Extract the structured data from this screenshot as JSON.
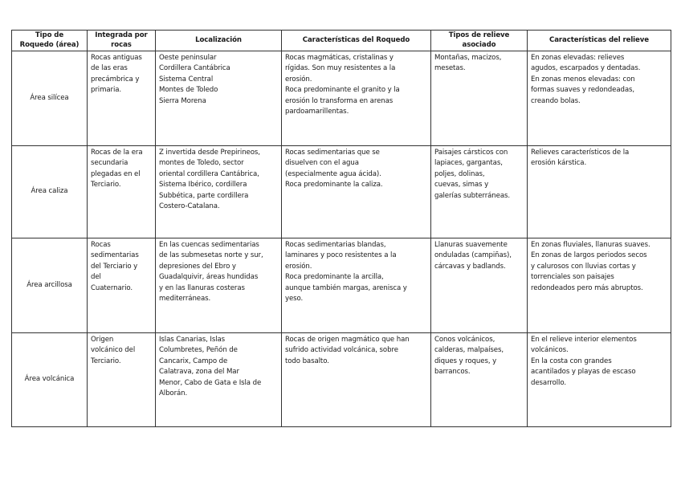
{
  "headers": [
    "Tipo de\nRoquedo (área)",
    "Integrada por\nrocas",
    "Localización",
    "Características del Roquedo",
    "Tipos de relieve\nasociado",
    "Características del relieve"
  ],
  "rows": [
    {
      "area": "Área silícea",
      "rocas": "Rocas antiguas\nde las eras\nprecámbrica y\nprimaria.",
      "localizacion": "Oeste peninsular\nCordillera Cantábrica\nSistema Central\nMontes de Toledo\nSierra Morena",
      "caracteristicas_roquedo": "Rocas magmáticas, cristalinas y\nrígidas. Son muy resistentes a la\nerosión.\nRoca predominante el granito y la\nerosión lo transforma en arenas\npardoamarillentas.",
      "tipos_relieve": "Montañas, macizos,\nmesetas.",
      "caracteristicas_relieve": "En zonas elevadas: relieves\nagudos, escarpados y dentadas.\nEn zonas menos elevadas: con\nformas suaves y redondeadas,\ncreando bolas."
    },
    {
      "area": "Área caliza",
      "rocas": "Rocas de la era\nsecundaria\nplegadas en el\nTerciario.",
      "localizacion": "Z invertida desde Prepirineos,\nmontes de Toledo, sector\noriental cordillera Cantábrica,\nSistema Ibérico, cordillera\nSubbética, parte cordillera\nCostero-Catalana.",
      "caracteristicas_roquedo": "Rocas sedimentarias que se\ndisuelven con el agua\n(especialmente agua ácida).\nRoca predominante la caliza.",
      "tipos_relieve": "Paisajes cársticos con\nlapiaces, gargantas,\npoljes, dolinas,\ncuevas, simas y\ngalerías subterráneas.",
      "caracteristicas_relieve": "Relieves característicos de la\nerosión kárstica."
    },
    {
      "area": "Área arcillosa",
      "rocas": "Rocas\nsedimentarias\ndel Terciario y\ndel\nCuaternario.",
      "localizacion": "En las cuencas sedimentarias\nde las submesetas norte y sur,\ndepresiones del Ebro y\nGuadalquivir, áreas hundidas\ny en las llanuras costeras\nmediterráneas.",
      "caracteristicas_roquedo": "Rocas sedimentarias blandas,\nlaminares y poco resistentes a la\nerosión.\nRoca predominante la arcilla,\naunque también margas, arenisca y\nyeso.",
      "tipos_relieve": "Llanuras suavemente\nonduladas (campiñas),\ncárcavas y badlands.",
      "caracteristicas_relieve": "En zonas fluviales, llanuras suaves.\nEn zonas de largos periodos secos\ny calurosos con lluvias cortas y\ntorrenciales son paisajes\nredondeados pero más abruptos."
    },
    {
      "area": "Área volcánica",
      "rocas": "Origen\nvolcánico del\nTerciario.",
      "localizacion": "Islas Canarias, Islas\nColumbretes, Peñón de\nCancarix, Campo de\nCalatrava, zona del Mar\nMenor, Cabo de Gata e Isla de\nAlborán.",
      "caracteristicas_roquedo": "Rocas de origen magmático que han\nsufrido actividad volcánica, sobre\ntodo basalto.",
      "tipos_relieve": "Conos volcánicos,\ncalderas, malpaíses,\ndiques y roques, y\nbarrancos.",
      "caracteristicas_relieve": "En el relieve interior elementos\nvolcánicos.\nEn la costa con grandes\nacantilados y playas de escaso\ndesarrollo."
    }
  ]
}
